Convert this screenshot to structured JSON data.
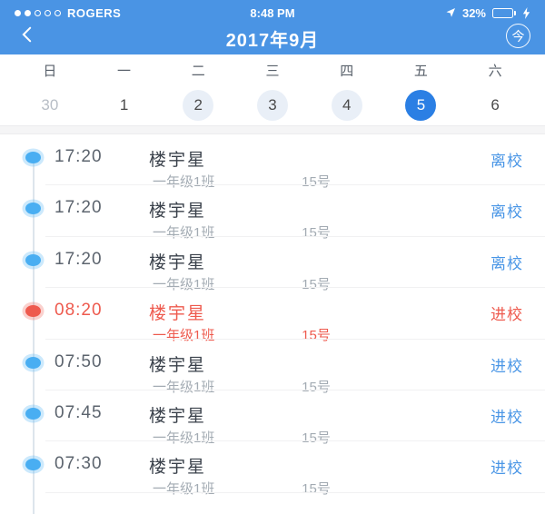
{
  "status_bar": {
    "carrier": "ROGERS",
    "time": "8:48 PM",
    "battery_percent": "32%",
    "battery_fill_percent": 32,
    "signal_filled_dots": 2,
    "signal_total_dots": 5,
    "icons": [
      "location-arrow-icon",
      "battery-icon",
      "charging-bolt-icon"
    ]
  },
  "nav": {
    "title": "2017年9月",
    "back_icon": "chevron-left-icon",
    "today_button_label": "今"
  },
  "calendar": {
    "weekdays": [
      "日",
      "一",
      "二",
      "三",
      "四",
      "五",
      "六"
    ],
    "dates": [
      {
        "label": "30",
        "style": "muted"
      },
      {
        "label": "1",
        "style": "plain"
      },
      {
        "label": "2",
        "style": "highlight"
      },
      {
        "label": "3",
        "style": "highlight"
      },
      {
        "label": "4",
        "style": "highlight"
      },
      {
        "label": "5",
        "style": "selected"
      },
      {
        "label": "6",
        "style": "plain"
      }
    ],
    "selected_date": "5"
  },
  "records": [
    {
      "time": "17:20",
      "name": "楼宇星",
      "class": "一年级1班",
      "number": "15号",
      "status": "离校",
      "color": "blue"
    },
    {
      "time": "17:20",
      "name": "楼宇星",
      "class": "一年级1班",
      "number": "15号",
      "status": "离校",
      "color": "blue"
    },
    {
      "time": "17:20",
      "name": "楼宇星",
      "class": "一年级1班",
      "number": "15号",
      "status": "离校",
      "color": "blue"
    },
    {
      "time": "08:20",
      "name": "楼宇星",
      "class": "一年级1班",
      "number": "15号",
      "status": "进校",
      "color": "red"
    },
    {
      "time": "07:50",
      "name": "楼宇星",
      "class": "一年级1班",
      "number": "15号",
      "status": "进校",
      "color": "blue"
    },
    {
      "time": "07:45",
      "name": "楼宇星",
      "class": "一年级1班",
      "number": "15号",
      "status": "进校",
      "color": "blue"
    },
    {
      "time": "07:30",
      "name": "楼宇星",
      "class": "一年级1班",
      "number": "15号",
      "status": "进校",
      "color": "blue"
    }
  ],
  "colors": {
    "header-blue": "#4a94e4",
    "accent": "#4a96e6",
    "red": "#ee5a4e",
    "selected-blue": "#2b7fe4",
    "highlight-bg": "#e9eff7",
    "dot-blue": "#49aef2"
  }
}
